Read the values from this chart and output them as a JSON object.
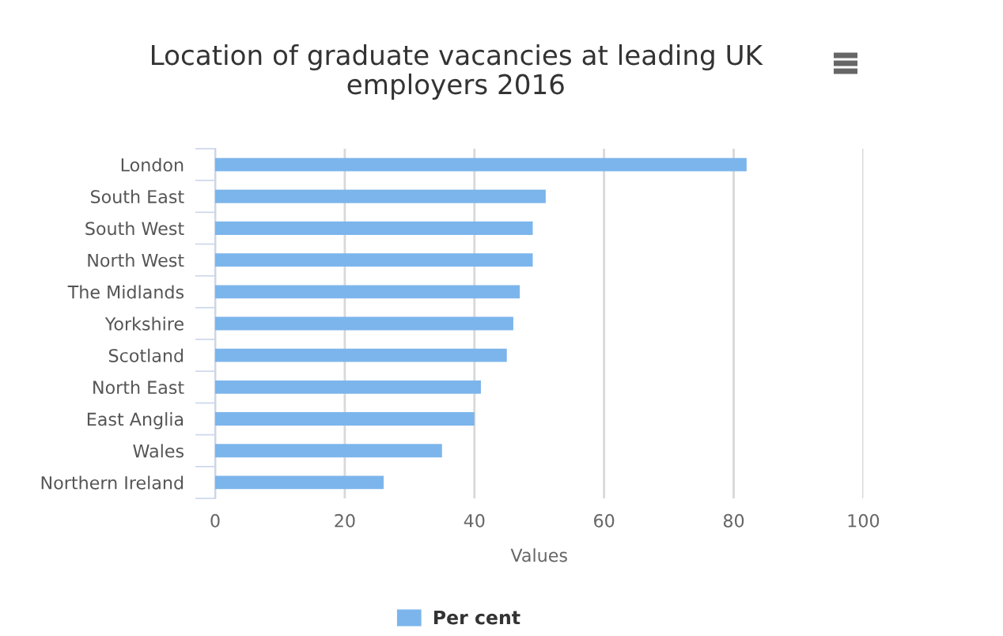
{
  "chart_data": {
    "type": "bar",
    "orientation": "horizontal",
    "title": "Location of graduate vacancies at leading UK employers 2016",
    "xlabel": "Values",
    "categories": [
      "London",
      "South East",
      "South West",
      "North West",
      "The Midlands",
      "Yorkshire",
      "Scotland",
      "North East",
      "East Anglia",
      "Wales",
      "Northern Ireland"
    ],
    "series": [
      {
        "name": "Per cent",
        "color": "#7cb5ec",
        "values": [
          82,
          51,
          49,
          49,
          47,
          46,
          45,
          41,
          40,
          35,
          26
        ]
      }
    ],
    "xlim": [
      0,
      100
    ],
    "xticks": [
      0,
      20,
      40,
      60,
      80,
      100
    ],
    "grid": "x",
    "legend": "bottom"
  }
}
